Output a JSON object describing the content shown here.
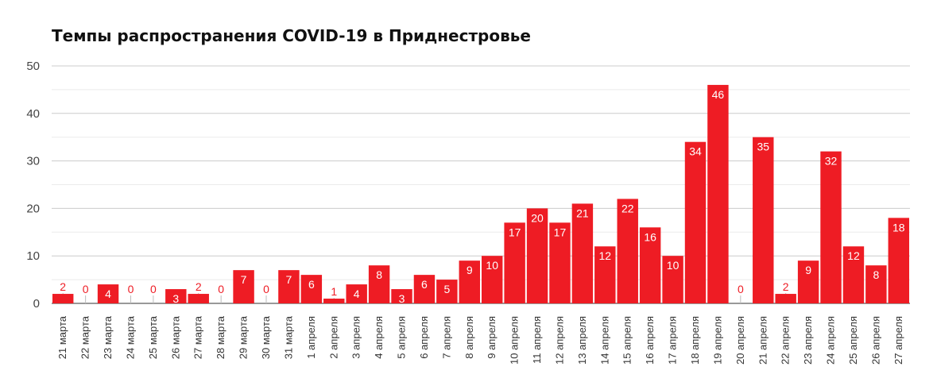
{
  "chart_data": {
    "type": "bar",
    "title": "Темпы распространения COVID-19 в Приднестровье",
    "xlabel": "",
    "ylabel": "",
    "ylim": [
      0,
      50
    ],
    "yticks": [
      0,
      10,
      20,
      30,
      40,
      50
    ],
    "grid": true,
    "legend": "none",
    "bar_color": "#ee1c24",
    "categories": [
      "21 марта",
      "22 марта",
      "23 марта",
      "24 марта",
      "25 марта",
      "26 марта",
      "27 марта",
      "28 марта",
      "29 марта",
      "30 марта",
      "31 марта",
      "1 апреля",
      "2 апреля",
      "3 апреля",
      "4 апреля",
      "5 апреля",
      "6 апреля",
      "7 апреля",
      "8 апреля",
      "9 апреля",
      "10 апреля",
      "11 апреля",
      "12 апреля",
      "13 апреля",
      "14 апреля",
      "15 апреля",
      "16 апреля",
      "17 апреля",
      "18 апреля",
      "19 апреля",
      "20 апреля",
      "21 апреля",
      "22 апреля",
      "23 апреля",
      "24 апреля",
      "25 апреля",
      "26 апреля",
      "27 апреля"
    ],
    "values": [
      2,
      0,
      4,
      0,
      0,
      3,
      2,
      0,
      7,
      0,
      7,
      6,
      1,
      4,
      8,
      3,
      6,
      5,
      9,
      10,
      17,
      20,
      17,
      21,
      12,
      22,
      16,
      10,
      34,
      46,
      0,
      35,
      2,
      9,
      32,
      12,
      8,
      18
    ]
  }
}
